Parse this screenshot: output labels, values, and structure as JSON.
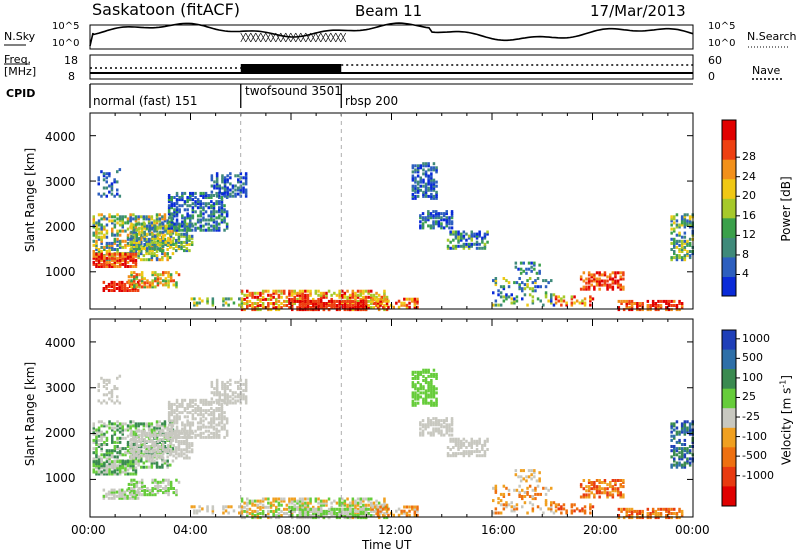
{
  "header": {
    "station": "Saskatoon (fitACF)",
    "beam": "Beam 11",
    "date": "17/Mar/2013"
  },
  "noise_panel": {
    "left_label": "N.Sky",
    "right_label": "N.Search",
    "y_ticks": [
      "10^5",
      "10^0"
    ],
    "right_ticks": [
      "10^5",
      "10^0"
    ]
  },
  "freq_panel": {
    "left_label_line1": "Freq.",
    "left_label_line2": "[MHz]",
    "left_ticks": [
      "18",
      "8"
    ],
    "right_ticks": [
      "60",
      "0"
    ],
    "right_label": "Nave"
  },
  "cpid": {
    "label": "CPID",
    "segments": [
      {
        "name": "normal (fast) 151",
        "start_hour": 0
      },
      {
        "name": "twofsound 3501",
        "start_hour": 6
      },
      {
        "name": "rbsp 200",
        "start_hour": 10
      }
    ]
  },
  "chart_data": [
    {
      "type": "heatmap",
      "ylabel": "Slant Range [km]",
      "y_ticks": [
        "1000",
        "2000",
        "3000",
        "4000"
      ],
      "ylim": [
        180,
        4500
      ],
      "x_range_hours": [
        0,
        24
      ],
      "colorbar": {
        "label": "Power [dB]",
        "ticks": [
          "4",
          "8",
          "12",
          "16",
          "20",
          "24",
          "28"
        ],
        "colors": [
          "#0a2bd8",
          "#2d5fbf",
          "#3f8a7a",
          "#3aa04a",
          "#a6c92a",
          "#f0c814",
          "#f2901a",
          "#ee4012",
          "#e10000"
        ]
      }
    },
    {
      "type": "heatmap",
      "ylabel": "Slant Range [km]",
      "y_ticks": [
        "1000",
        "2000",
        "3000",
        "4000"
      ],
      "ylim": [
        180,
        4500
      ],
      "x_range_hours": [
        0,
        24
      ],
      "xlabel": "Time UT",
      "x_ticks": [
        "00:00",
        "04:00",
        "08:00",
        "12:00",
        "16:00",
        "20:00",
        "00:00"
      ],
      "colorbar": {
        "label": "Velocity [m s^-1]",
        "ticks": [
          "1000",
          "500",
          "100",
          "25",
          "-25",
          "-100",
          "-500",
          "-1000"
        ],
        "colors": [
          "#1f3fb8",
          "#2e6fa8",
          "#3a8a50",
          "#66cc3a",
          "#c8c8c0",
          "#f0a020",
          "#ee7010",
          "#e83a10",
          "#e00000"
        ]
      }
    }
  ]
}
